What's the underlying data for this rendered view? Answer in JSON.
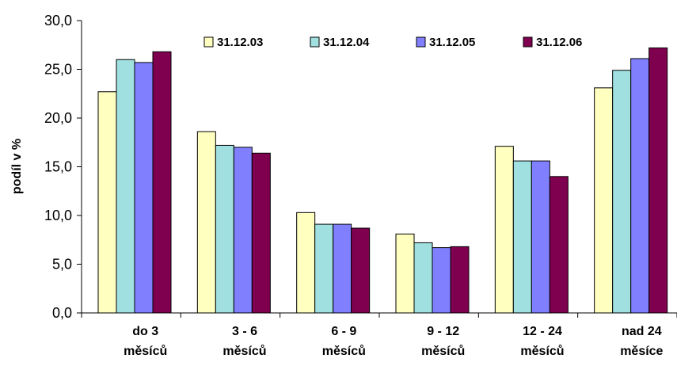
{
  "chart_data": {
    "type": "bar",
    "categories": [
      [
        "do 3",
        "měsíců"
      ],
      [
        "3 - 6",
        "měsíců"
      ],
      [
        "6 - 9",
        "měsíců"
      ],
      [
        "9 - 12",
        "měsíců"
      ],
      [
        "12 - 24",
        "měsíců"
      ],
      [
        "nad 24",
        "měsíce"
      ]
    ],
    "series": [
      {
        "name": "31.12.03",
        "color": "#FFFFC0",
        "values": [
          22.7,
          18.6,
          10.3,
          8.1,
          17.1,
          23.1
        ]
      },
      {
        "name": "31.12.04",
        "color": "#A0E0E0",
        "values": [
          26.0,
          17.2,
          9.1,
          7.2,
          15.6,
          24.9
        ]
      },
      {
        "name": "31.12.05",
        "color": "#8080FF",
        "values": [
          25.7,
          17.0,
          9.1,
          6.7,
          15.6,
          26.1
        ]
      },
      {
        "name": "31.12.06",
        "color": "#800050",
        "values": [
          26.8,
          16.4,
          8.7,
          6.8,
          14.0,
          27.2
        ]
      }
    ],
    "ylabel": "podíl v %",
    "ylim": [
      0,
      30
    ],
    "yticks": [
      "0,0",
      "5,0",
      "10,0",
      "15,0",
      "20,0",
      "25,0",
      "30,0"
    ],
    "ytick_values": [
      0,
      5,
      10,
      15,
      20,
      25,
      30
    ],
    "grid": false,
    "legend_position": "top"
  }
}
